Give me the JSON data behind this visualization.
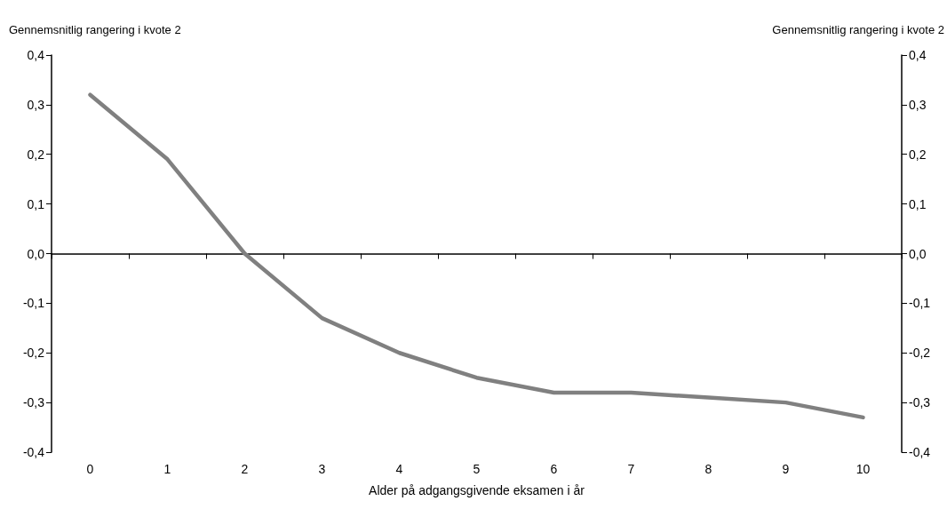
{
  "chart_data": {
    "type": "line",
    "xlabel": "Alder på adgangsgivende eksamen i år",
    "ylabel": "Gennemsnitlig rangering i kvote 2",
    "y2label": "Gennemsnitlig rangering i kvote 2",
    "categories": [
      "0",
      "1",
      "2",
      "3",
      "4",
      "5",
      "6",
      "7",
      "8",
      "9",
      "10"
    ],
    "series": [
      {
        "color": "#808080",
        "values": [
          0.32,
          0.19,
          0.0,
          -0.13,
          -0.2,
          -0.25,
          -0.28,
          -0.28,
          -0.29,
          -0.3,
          -0.33
        ]
      }
    ],
    "ylim": [
      -0.4,
      0.4
    ],
    "yticks": [
      {
        "value": -0.4,
        "label": "-0,4"
      },
      {
        "value": -0.3,
        "label": "-0,3"
      },
      {
        "value": -0.2,
        "label": "-0,2"
      },
      {
        "value": -0.1,
        "label": "-0,1"
      },
      {
        "value": 0,
        "label": "0,0"
      },
      {
        "value": 0.1,
        "label": "0,1"
      },
      {
        "value": 0.2,
        "label": "0,2"
      },
      {
        "value": 0.3,
        "label": "0,3"
      },
      {
        "value": 0.4,
        "label": "0,4"
      }
    ],
    "y2lim": [
      -0.4,
      0.4
    ],
    "y2ticks": [
      {
        "value": -0.4,
        "label": "-0,4"
      },
      {
        "value": -0.3,
        "label": "-0,3"
      },
      {
        "value": -0.2,
        "label": "-0,2"
      },
      {
        "value": -0.1,
        "label": "-0,1"
      },
      {
        "value": 0,
        "label": "0,0"
      },
      {
        "value": 0.1,
        "label": "0,1"
      },
      {
        "value": 0.2,
        "label": "0,2"
      },
      {
        "value": 0.3,
        "label": "0,3"
      },
      {
        "value": 0.4,
        "label": "0,4"
      }
    ],
    "marker": "none",
    "line_style": "solid"
  }
}
